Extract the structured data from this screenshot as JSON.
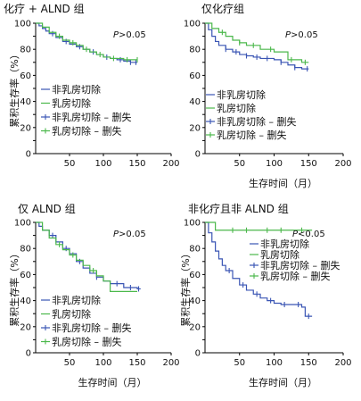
{
  "chart_data": [
    {
      "type": "line",
      "title": "化疗 + ALND 组",
      "xlabel": "",
      "ylabel": "累积生存率（%）",
      "xlim": [
        0,
        200
      ],
      "ylim": [
        0,
        100
      ],
      "xticks": [
        50,
        100,
        150,
        200
      ],
      "yticks": [
        0,
        10,
        20,
        30,
        40,
        50,
        60,
        70,
        80,
        90,
        100
      ],
      "annotation": "P>0.05",
      "legend_placement": "bottom-left",
      "legend": [
        "非乳房切除",
        "乳房切除",
        "非乳房切除 – 删失",
        "乳房切除 – 删失"
      ],
      "series": [
        {
          "name": "非乳房切除",
          "color": "#3a55b4",
          "x": [
            0,
            5,
            10,
            15,
            20,
            30,
            40,
            50,
            60,
            70,
            80,
            90,
            100,
            110,
            120,
            130,
            140,
            150
          ],
          "y": [
            100,
            98,
            96,
            94,
            92,
            89,
            86,
            84,
            82,
            80,
            78,
            76,
            74,
            73,
            72,
            71,
            70,
            70
          ],
          "censor_x": [
            25,
            45,
            65,
            85,
            105,
            125,
            140,
            148
          ]
        },
        {
          "name": "乳房切除",
          "color": "#4bb84b",
          "x": [
            0,
            10,
            20,
            30,
            40,
            50,
            60,
            70,
            80,
            90,
            100,
            110,
            120,
            130,
            140,
            150
          ],
          "y": [
            100,
            97,
            93,
            90,
            87,
            85,
            83,
            80,
            78,
            76,
            74,
            73,
            73,
            72,
            72,
            72
          ],
          "censor_x": [
            35,
            55,
            75,
            95,
            115,
            135,
            150
          ]
        }
      ]
    },
    {
      "type": "line",
      "title": "仅化疗组",
      "xlabel": "生存时间（月）",
      "ylabel": "",
      "xlim": [
        0,
        200
      ],
      "ylim": [
        0,
        100
      ],
      "xticks": [
        50,
        100,
        150,
        200
      ],
      "yticks": [
        0,
        10,
        20,
        30,
        40,
        50,
        60,
        70,
        80,
        90,
        100
      ],
      "annotation": "P>0.05",
      "legend_placement": "bottom-left",
      "legend": [
        "非乳房切除",
        "乳房切除",
        "非乳房切除 – 删失",
        "乳房切除 – 删失"
      ],
      "series": [
        {
          "name": "非乳房切除",
          "color": "#3a55b4",
          "x": [
            0,
            5,
            10,
            15,
            20,
            30,
            40,
            50,
            60,
            70,
            80,
            90,
            100,
            110,
            120,
            130,
            140,
            150
          ],
          "y": [
            100,
            95,
            90,
            86,
            83,
            80,
            78,
            76,
            75,
            74,
            73,
            73,
            72,
            70,
            68,
            66,
            65,
            65
          ],
          "censor_x": [
            30,
            45,
            60,
            75,
            90,
            110,
            130,
            148
          ]
        },
        {
          "name": "乳房切除",
          "color": "#4bb84b",
          "x": [
            0,
            10,
            20,
            30,
            40,
            50,
            60,
            80,
            100,
            120,
            140,
            150
          ],
          "y": [
            100,
            96,
            93,
            90,
            87,
            85,
            83,
            80,
            78,
            72,
            70,
            70
          ],
          "censor_x": [
            25,
            50,
            70,
            95,
            125,
            145
          ]
        }
      ]
    },
    {
      "type": "line",
      "title": "仅 ALND 组",
      "xlabel": "生存时间（月）",
      "ylabel": "累积生存率（%）",
      "xlim": [
        0,
        200
      ],
      "ylim": [
        0,
        100
      ],
      "xticks": [
        50,
        100,
        150,
        200
      ],
      "yticks": [
        0,
        10,
        20,
        30,
        40,
        50,
        60,
        70,
        80,
        90,
        100
      ],
      "annotation": "P>0.05",
      "legend_placement": "bottom-left",
      "legend": [
        "非乳房切除",
        "乳房切除",
        "非乳房切除 – 删失",
        "乳房切除 – 删失"
      ],
      "series": [
        {
          "name": "非乳房切除",
          "color": "#3a55b4",
          "x": [
            0,
            5,
            10,
            20,
            30,
            40,
            50,
            60,
            70,
            80,
            90,
            100,
            110,
            130,
            150,
            155
          ],
          "y": [
            100,
            97,
            94,
            90,
            85,
            80,
            76,
            70,
            65,
            61,
            58,
            55,
            53,
            50,
            49,
            49
          ],
          "censor_x": [
            25,
            45,
            65,
            90,
            120,
            140,
            152
          ]
        },
        {
          "name": "乳房切除",
          "color": "#4bb84b",
          "x": [
            0,
            10,
            20,
            30,
            40,
            50,
            60,
            70,
            80,
            90,
            100,
            110,
            120,
            150
          ],
          "y": [
            100,
            94,
            88,
            83,
            79,
            75,
            71,
            67,
            63,
            59,
            55,
            47,
            47,
            47
          ],
          "censor_x": [
            35,
            55,
            85
          ]
        }
      ]
    },
    {
      "type": "line",
      "title": "非化疗且非 ALND 组",
      "xlabel": "生存时间（月）",
      "ylabel": "累积生存率（%）",
      "xlim": [
        0,
        200
      ],
      "ylim": [
        0,
        100
      ],
      "xticks": [
        50,
        100,
        150,
        200
      ],
      "yticks": [
        0,
        10,
        20,
        30,
        40,
        50,
        60,
        70,
        80,
        90,
        100
      ],
      "annotation": "P<0.05",
      "legend_placement": "center",
      "legend": [
        "非乳房切除",
        "乳房切除",
        "非乳房切除 – 删失",
        "乳房切除 – 删失"
      ],
      "series": [
        {
          "name": "非乳房切除",
          "color": "#3a55b4",
          "x": [
            0,
            5,
            10,
            15,
            20,
            25,
            30,
            40,
            50,
            60,
            70,
            80,
            90,
            100,
            110,
            120,
            130,
            140,
            145,
            150,
            155
          ],
          "y": [
            100,
            92,
            85,
            78,
            72,
            67,
            63,
            57,
            52,
            48,
            45,
            42,
            40,
            38,
            37,
            37,
            37,
            35,
            28,
            28,
            28
          ],
          "censor_x": [
            35,
            55,
            75,
            95,
            115,
            135,
            150
          ]
        },
        {
          "name": "乳房切除",
          "color": "#4bb84b",
          "x": [
            0,
            10,
            15,
            30,
            50,
            80,
            100,
            130,
            150,
            155
          ],
          "y": [
            100,
            100,
            94,
            94,
            94,
            94,
            94,
            94,
            94,
            94
          ],
          "censor_x": [
            40,
            60,
            90,
            110,
            140
          ]
        }
      ]
    }
  ]
}
